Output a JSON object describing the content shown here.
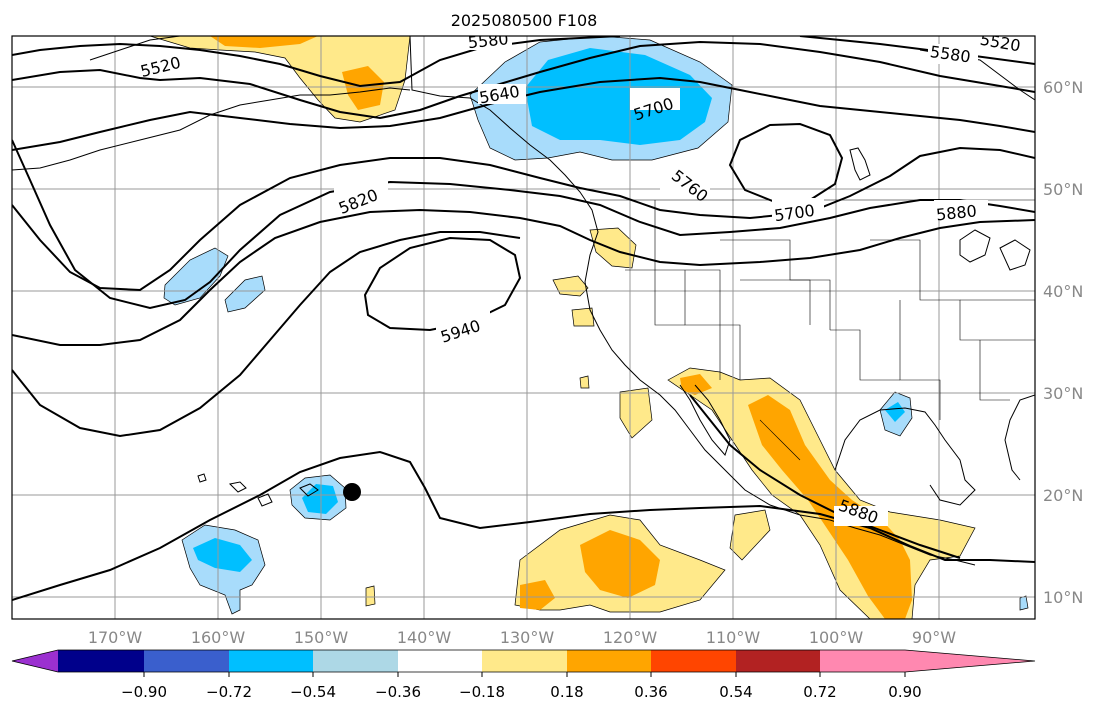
{
  "title": "2025080500 F108",
  "colors": {
    "pos1": "#ffe98a",
    "pos2": "#ffa500",
    "neg1": "#a8dcfb",
    "neg2": "#00bfff",
    "colorbar": [
      "#9b30d0",
      "#00008b",
      "#3a5fcd",
      "#00bfff",
      "#add8e6",
      "#ffffff",
      "#ffe98a",
      "#ffa500",
      "#ff4500",
      "#b22222",
      "#ff88b0"
    ]
  },
  "lon_ticks": [
    "170°W",
    "160°W",
    "150°W",
    "140°W",
    "130°W",
    "120°W",
    "110°W",
    "100°W",
    "90°W"
  ],
  "lat_ticks": [
    "60°N",
    "50°N",
    "40°N",
    "30°N",
    "20°N",
    "10°N"
  ],
  "contour_labels": [
    "5520",
    "5580",
    "5580",
    "5520",
    "5640",
    "5700",
    "5700",
    "5760",
    "5820",
    "5880",
    "5940",
    "5880"
  ],
  "colorbar_ticks": [
    "−0.90",
    "−0.72",
    "−0.54",
    "−0.36",
    "−0.18",
    "0.18",
    "0.36",
    "0.54",
    "0.72",
    "0.90"
  ]
}
